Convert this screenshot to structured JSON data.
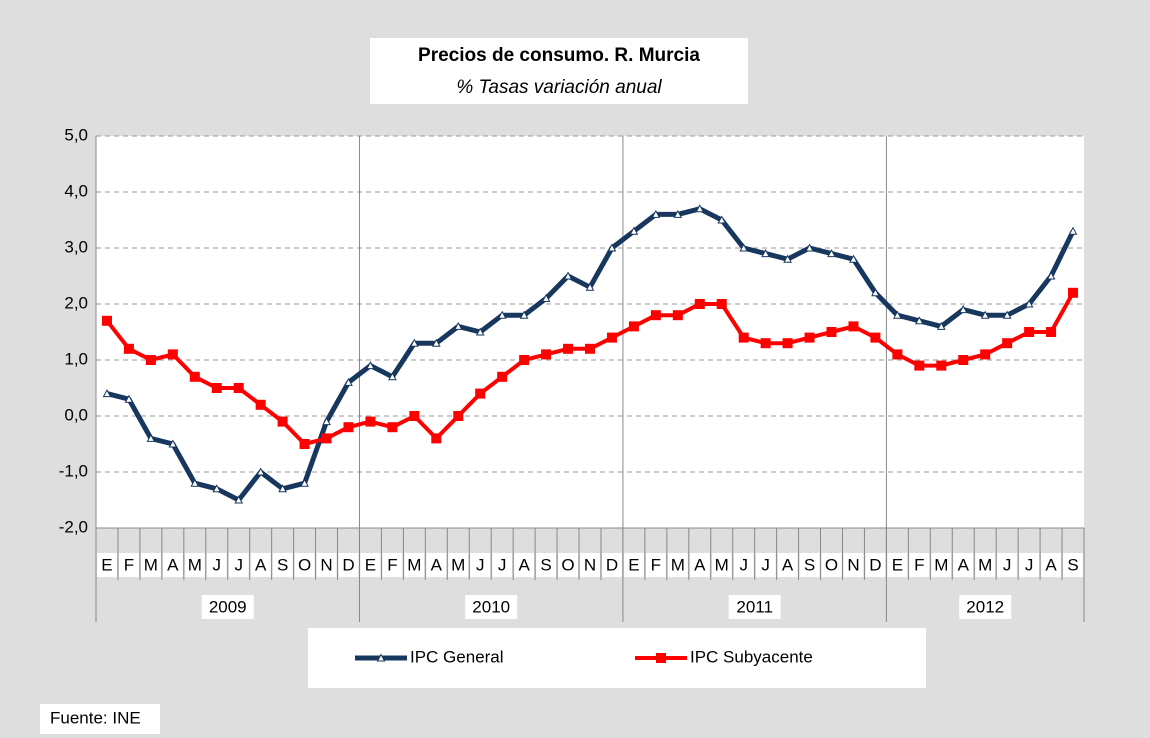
{
  "chart_data": {
    "type": "line",
    "title": "Precios de consumo. R. Murcia",
    "subtitle": "% Tasas variación anual",
    "source": "Fuente: INE",
    "groups": [
      {
        "label": "2009",
        "categories": [
          "E",
          "F",
          "M",
          "A",
          "M",
          "J",
          "J",
          "A",
          "S",
          "O",
          "N",
          "D"
        ]
      },
      {
        "label": "2010",
        "categories": [
          "E",
          "F",
          "M",
          "A",
          "M",
          "J",
          "J",
          "A",
          "S",
          "O",
          "N",
          "D"
        ]
      },
      {
        "label": "2011",
        "categories": [
          "E",
          "F",
          "M",
          "A",
          "M",
          "J",
          "J",
          "A",
          "S",
          "O",
          "N",
          "D"
        ]
      },
      {
        "label": "2012",
        "categories": [
          "E",
          "F",
          "M",
          "A",
          "M",
          "J",
          "J",
          "A",
          "S"
        ]
      }
    ],
    "series": [
      {
        "name": "IPC General",
        "color": "#17375e",
        "marker": "triangle",
        "values": [
          0.4,
          0.3,
          -0.4,
          -0.5,
          -1.2,
          -1.3,
          -1.5,
          -1.0,
          -1.3,
          -1.2,
          -0.1,
          0.6,
          0.9,
          0.7,
          1.3,
          1.3,
          1.6,
          1.5,
          1.8,
          1.8,
          2.1,
          2.5,
          2.3,
          3.0,
          3.3,
          3.6,
          3.6,
          3.7,
          3.5,
          3.0,
          2.9,
          2.8,
          3.0,
          2.9,
          2.8,
          2.2,
          1.8,
          1.7,
          1.6,
          1.9,
          1.8,
          1.8,
          2.0,
          2.5,
          3.3
        ]
      },
      {
        "name": "IPC Subyacente",
        "color": "#ff0000",
        "marker": "square",
        "values": [
          1.7,
          1.2,
          1.0,
          1.1,
          0.7,
          0.5,
          0.5,
          0.2,
          -0.1,
          -0.5,
          -0.4,
          -0.2,
          -0.1,
          -0.2,
          0.0,
          -0.4,
          0.0,
          0.4,
          0.7,
          1.0,
          1.1,
          1.2,
          1.2,
          1.4,
          1.6,
          1.8,
          1.8,
          2.0,
          2.0,
          1.4,
          1.3,
          1.3,
          1.4,
          1.5,
          1.6,
          1.4,
          1.1,
          0.9,
          0.9,
          1.0,
          1.1,
          1.3,
          1.5,
          1.5,
          2.2
        ]
      }
    ],
    "ylim": [
      -2,
      5
    ],
    "yticks": [
      {
        "value": -2,
        "label": "-2,0"
      },
      {
        "value": -1,
        "label": "-1,0"
      },
      {
        "value": 0,
        "label": "0,0"
      },
      {
        "value": 1,
        "label": "1,0"
      },
      {
        "value": 2,
        "label": "2,0"
      },
      {
        "value": 3,
        "label": "3,0"
      },
      {
        "value": 4,
        "label": "4,0"
      },
      {
        "value": 5,
        "label": "5,0"
      }
    ],
    "grid": true,
    "legend": "bottom"
  }
}
